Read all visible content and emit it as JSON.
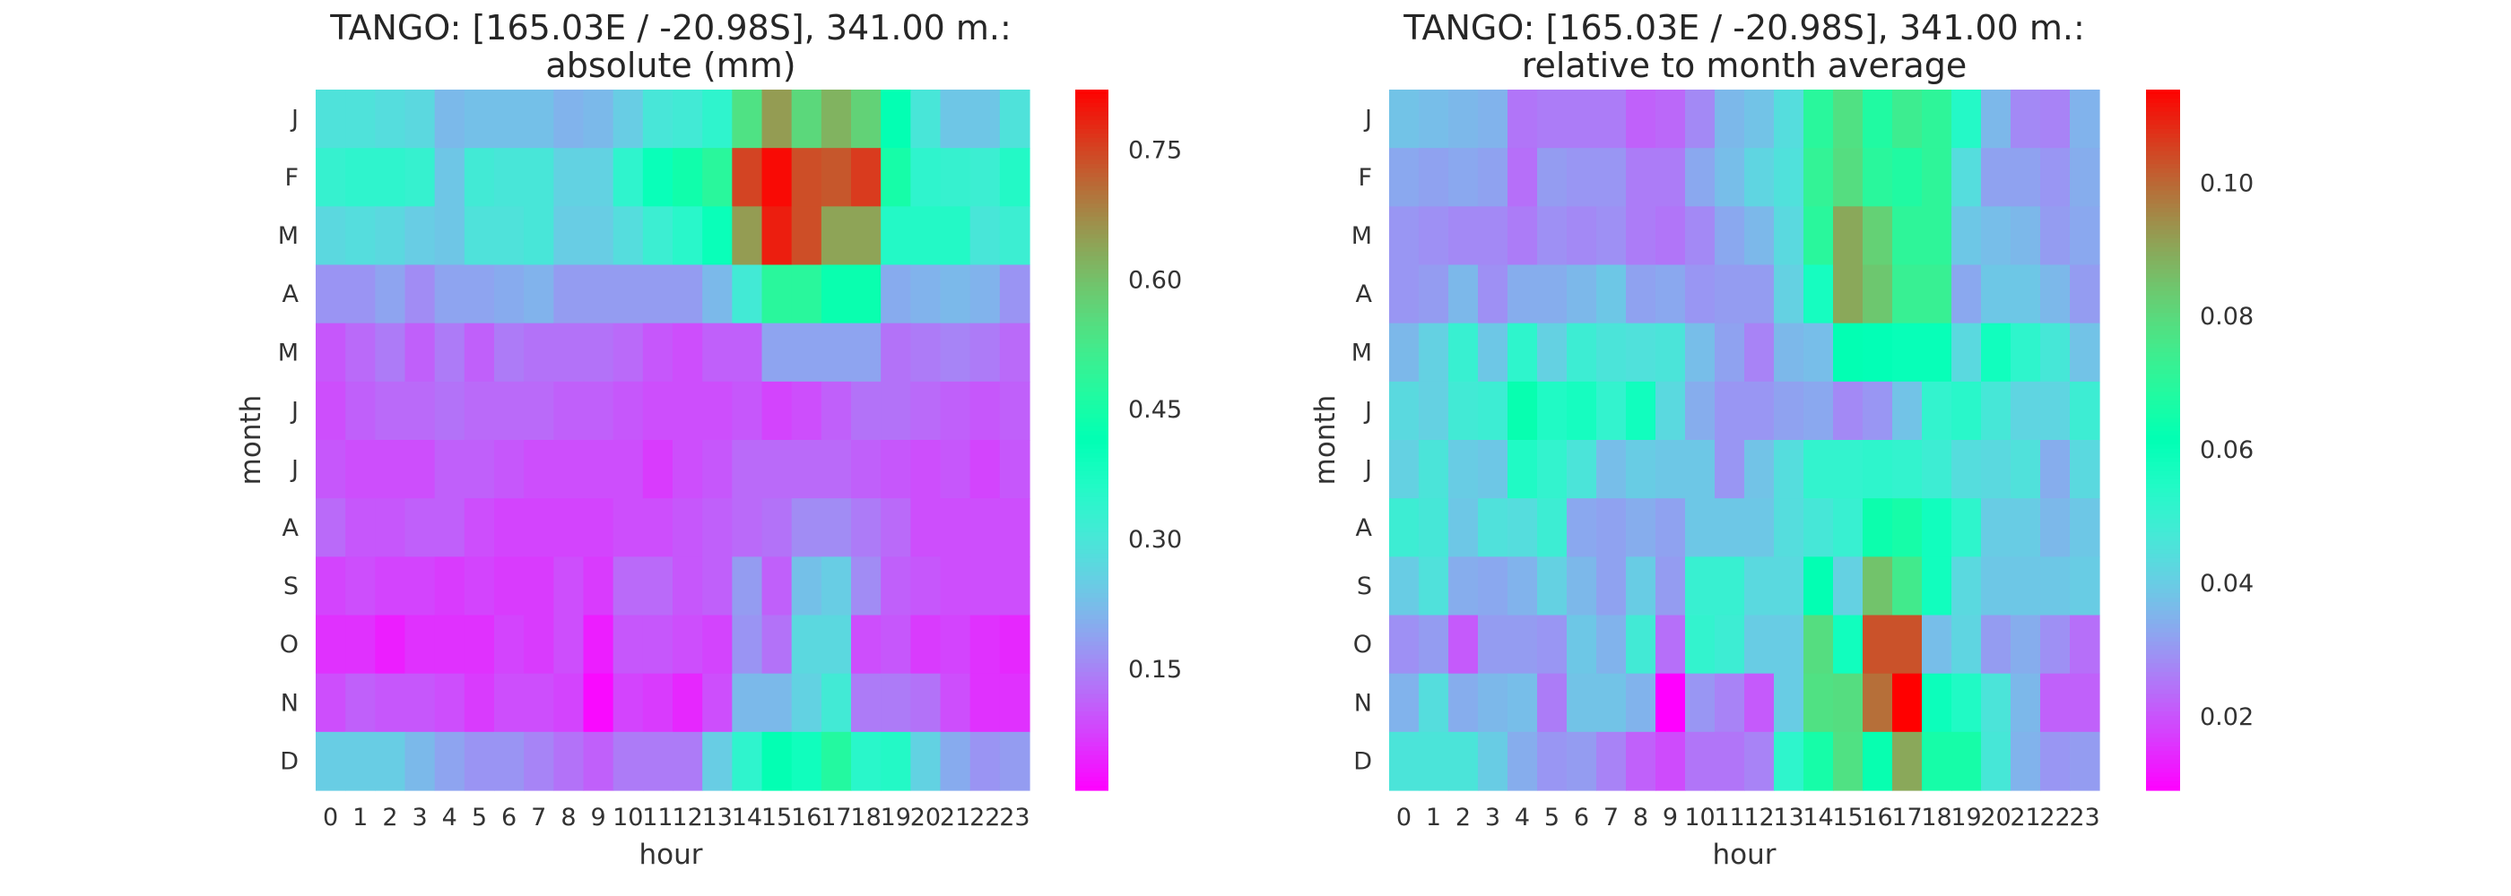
{
  "chart_data": [
    {
      "type": "heatmap",
      "title_line1": "TANGO: [165.03E / -20.98S], 341.00 m.:",
      "title_line2": "absolute (mm)",
      "xlabel": "hour",
      "ylabel": "month",
      "x": [
        "0",
        "1",
        "2",
        "3",
        "4",
        "5",
        "6",
        "7",
        "8",
        "9",
        "10",
        "11",
        "12",
        "13",
        "14",
        "15",
        "16",
        "17",
        "18",
        "19",
        "20",
        "21",
        "22",
        "23"
      ],
      "y": [
        "J",
        "F",
        "M",
        "A",
        "M",
        "J",
        "J",
        "A",
        "S",
        "O",
        "N",
        "D"
      ],
      "colormap": "rainbow",
      "vmin": 0.01,
      "vmax": 0.82,
      "colorbar_ticks": [
        "0.15",
        "0.30",
        "0.45",
        "0.60",
        "0.75"
      ],
      "values": [
        [
          0.29,
          0.29,
          0.28,
          0.27,
          0.22,
          0.23,
          0.23,
          0.23,
          0.21,
          0.22,
          0.25,
          0.3,
          0.31,
          0.34,
          0.54,
          0.65,
          0.56,
          0.62,
          0.57,
          0.42,
          0.3,
          0.24,
          0.24,
          0.29
        ],
        [
          0.33,
          0.34,
          0.34,
          0.33,
          0.24,
          0.31,
          0.3,
          0.3,
          0.26,
          0.26,
          0.34,
          0.4,
          0.44,
          0.48,
          0.75,
          0.81,
          0.74,
          0.73,
          0.76,
          0.45,
          0.34,
          0.33,
          0.32,
          0.36
        ],
        [
          0.27,
          0.28,
          0.27,
          0.25,
          0.24,
          0.29,
          0.29,
          0.3,
          0.25,
          0.25,
          0.28,
          0.32,
          0.35,
          0.4,
          0.65,
          0.79,
          0.74,
          0.64,
          0.64,
          0.36,
          0.36,
          0.36,
          0.3,
          0.32
        ],
        [
          0.17,
          0.17,
          0.19,
          0.16,
          0.19,
          0.19,
          0.2,
          0.21,
          0.18,
          0.18,
          0.18,
          0.18,
          0.18,
          0.22,
          0.31,
          0.48,
          0.48,
          0.43,
          0.43,
          0.2,
          0.21,
          0.22,
          0.21,
          0.17
        ],
        [
          0.1,
          0.12,
          0.14,
          0.11,
          0.14,
          0.11,
          0.14,
          0.13,
          0.13,
          0.13,
          0.12,
          0.1,
          0.09,
          0.11,
          0.11,
          0.19,
          0.19,
          0.19,
          0.19,
          0.13,
          0.14,
          0.15,
          0.14,
          0.12
        ],
        [
          0.09,
          0.11,
          0.12,
          0.12,
          0.13,
          0.12,
          0.12,
          0.12,
          0.11,
          0.11,
          0.1,
          0.09,
          0.09,
          0.09,
          0.1,
          0.08,
          0.09,
          0.11,
          0.13,
          0.13,
          0.12,
          0.11,
          0.1,
          0.11
        ],
        [
          0.1,
          0.09,
          0.09,
          0.09,
          0.11,
          0.11,
          0.1,
          0.09,
          0.09,
          0.09,
          0.09,
          0.07,
          0.09,
          0.1,
          0.12,
          0.12,
          0.12,
          0.12,
          0.11,
          0.1,
          0.09,
          0.1,
          0.08,
          0.1
        ],
        [
          0.12,
          0.1,
          0.1,
          0.11,
          0.11,
          0.09,
          0.08,
          0.08,
          0.08,
          0.08,
          0.09,
          0.09,
          0.1,
          0.11,
          0.12,
          0.13,
          0.16,
          0.16,
          0.14,
          0.12,
          0.09,
          0.09,
          0.09,
          0.09
        ],
        [
          0.08,
          0.09,
          0.08,
          0.08,
          0.07,
          0.08,
          0.07,
          0.07,
          0.09,
          0.07,
          0.12,
          0.12,
          0.1,
          0.11,
          0.18,
          0.11,
          0.23,
          0.25,
          0.16,
          0.11,
          0.1,
          0.09,
          0.09,
          0.09
        ],
        [
          0.06,
          0.06,
          0.04,
          0.06,
          0.06,
          0.06,
          0.08,
          0.07,
          0.09,
          0.04,
          0.1,
          0.1,
          0.09,
          0.08,
          0.17,
          0.13,
          0.27,
          0.27,
          0.09,
          0.1,
          0.07,
          0.08,
          0.06,
          0.05
        ],
        [
          0.09,
          0.11,
          0.1,
          0.1,
          0.09,
          0.07,
          0.09,
          0.09,
          0.08,
          0.02,
          0.08,
          0.07,
          0.05,
          0.09,
          0.22,
          0.22,
          0.26,
          0.31,
          0.14,
          0.14,
          0.13,
          0.09,
          0.06,
          0.06
        ],
        [
          0.25,
          0.25,
          0.25,
          0.22,
          0.19,
          0.17,
          0.17,
          0.15,
          0.13,
          0.11,
          0.14,
          0.14,
          0.14,
          0.25,
          0.34,
          0.42,
          0.39,
          0.47,
          0.35,
          0.36,
          0.26,
          0.2,
          0.17,
          0.18
        ]
      ]
    },
    {
      "type": "heatmap",
      "title_line1": "TANGO: [165.03E / -20.98S], 341.00 m.:",
      "title_line2": "relative to month average",
      "xlabel": "hour",
      "ylabel": "month",
      "x": [
        "0",
        "1",
        "2",
        "3",
        "4",
        "5",
        "6",
        "7",
        "8",
        "9",
        "10",
        "11",
        "12",
        "13",
        "14",
        "15",
        "16",
        "17",
        "18",
        "19",
        "20",
        "21",
        "22",
        "23"
      ],
      "y": [
        "J",
        "F",
        "M",
        "A",
        "M",
        "J",
        "J",
        "A",
        "S",
        "O",
        "N",
        "D"
      ],
      "colormap": "rainbow",
      "vmin": 0.009,
      "vmax": 0.114,
      "colorbar_ticks": [
        "0.02",
        "0.04",
        "0.06",
        "0.08",
        "0.10"
      ],
      "values": [
        [
          0.038,
          0.037,
          0.036,
          0.035,
          0.025,
          0.026,
          0.026,
          0.026,
          0.022,
          0.023,
          0.028,
          0.036,
          0.038,
          0.044,
          0.07,
          0.078,
          0.068,
          0.074,
          0.071,
          0.054,
          0.036,
          0.028,
          0.027,
          0.035
        ],
        [
          0.033,
          0.032,
          0.033,
          0.032,
          0.024,
          0.031,
          0.03,
          0.03,
          0.026,
          0.026,
          0.033,
          0.037,
          0.042,
          0.045,
          0.072,
          0.079,
          0.07,
          0.068,
          0.071,
          0.044,
          0.032,
          0.032,
          0.03,
          0.034
        ],
        [
          0.03,
          0.029,
          0.028,
          0.028,
          0.026,
          0.029,
          0.028,
          0.029,
          0.026,
          0.025,
          0.028,
          0.033,
          0.036,
          0.043,
          0.07,
          0.09,
          0.082,
          0.071,
          0.071,
          0.039,
          0.037,
          0.036,
          0.031,
          0.033
        ],
        [
          0.03,
          0.031,
          0.036,
          0.029,
          0.034,
          0.034,
          0.036,
          0.039,
          0.032,
          0.033,
          0.03,
          0.031,
          0.031,
          0.041,
          0.057,
          0.09,
          0.084,
          0.073,
          0.073,
          0.033,
          0.039,
          0.039,
          0.036,
          0.031
        ],
        [
          0.036,
          0.041,
          0.05,
          0.039,
          0.052,
          0.041,
          0.049,
          0.046,
          0.045,
          0.046,
          0.037,
          0.032,
          0.027,
          0.036,
          0.037,
          0.062,
          0.061,
          0.06,
          0.06,
          0.043,
          0.058,
          0.052,
          0.047,
          0.038
        ],
        [
          0.043,
          0.041,
          0.048,
          0.049,
          0.063,
          0.055,
          0.057,
          0.051,
          0.058,
          0.043,
          0.034,
          0.03,
          0.03,
          0.032,
          0.033,
          0.028,
          0.03,
          0.038,
          0.051,
          0.053,
          0.047,
          0.042,
          0.042,
          0.049
        ],
        [
          0.041,
          0.046,
          0.04,
          0.039,
          0.055,
          0.051,
          0.046,
          0.037,
          0.04,
          0.039,
          0.039,
          0.03,
          0.038,
          0.044,
          0.051,
          0.051,
          0.052,
          0.051,
          0.049,
          0.044,
          0.043,
          0.045,
          0.034,
          0.043
        ],
        [
          0.049,
          0.047,
          0.039,
          0.045,
          0.044,
          0.049,
          0.033,
          0.032,
          0.034,
          0.032,
          0.039,
          0.039,
          0.039,
          0.044,
          0.047,
          0.05,
          0.064,
          0.066,
          0.058,
          0.052,
          0.04,
          0.04,
          0.036,
          0.039
        ],
        [
          0.04,
          0.045,
          0.034,
          0.033,
          0.035,
          0.041,
          0.036,
          0.032,
          0.04,
          0.031,
          0.05,
          0.05,
          0.043,
          0.043,
          0.062,
          0.041,
          0.085,
          0.075,
          0.058,
          0.043,
          0.039,
          0.039,
          0.039,
          0.04
        ],
        [
          0.029,
          0.031,
          0.021,
          0.031,
          0.031,
          0.03,
          0.039,
          0.035,
          0.048,
          0.024,
          0.051,
          0.049,
          0.04,
          0.04,
          0.079,
          0.058,
          0.103,
          0.103,
          0.037,
          0.042,
          0.031,
          0.034,
          0.029,
          0.024
        ],
        [
          0.035,
          0.044,
          0.034,
          0.036,
          0.037,
          0.026,
          0.038,
          0.038,
          0.035,
          0.009,
          0.03,
          0.027,
          0.021,
          0.04,
          0.078,
          0.079,
          0.099,
          0.114,
          0.059,
          0.055,
          0.046,
          0.036,
          0.022,
          0.022
        ],
        [
          0.046,
          0.046,
          0.046,
          0.04,
          0.034,
          0.03,
          0.031,
          0.027,
          0.022,
          0.019,
          0.025,
          0.025,
          0.027,
          0.052,
          0.066,
          0.078,
          0.063,
          0.09,
          0.066,
          0.066,
          0.047,
          0.035,
          0.03,
          0.031
        ]
      ]
    }
  ]
}
